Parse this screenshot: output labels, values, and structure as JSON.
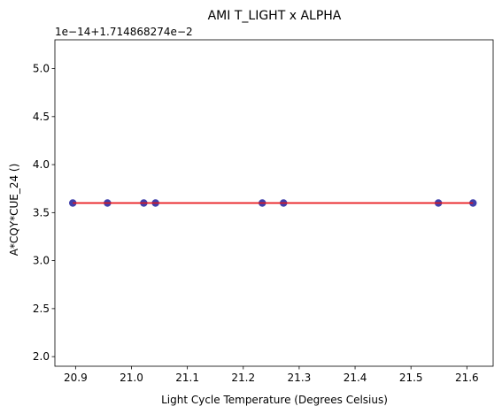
{
  "chart_data": {
    "type": "scatter",
    "title": "AMI T_LIGHT x ALPHA",
    "xlabel": "Light Cycle Temperature (Degrees Celsius)",
    "ylabel": "A*CQY*CUE_24 ()",
    "y_offset_text": "1e−14+1.714868274e−2",
    "xlim": [
      20.863,
      21.647
    ],
    "ylim": [
      1.9,
      5.3
    ],
    "x_ticks": [
      {
        "value": 20.9,
        "label": "20.9"
      },
      {
        "value": 21.0,
        "label": "21.0"
      },
      {
        "value": 21.1,
        "label": "21.1"
      },
      {
        "value": 21.2,
        "label": "21.2"
      },
      {
        "value": 21.3,
        "label": "21.3"
      },
      {
        "value": 21.4,
        "label": "21.4"
      },
      {
        "value": 21.5,
        "label": "21.5"
      },
      {
        "value": 21.6,
        "label": "21.6"
      }
    ],
    "y_ticks": [
      {
        "value": 2.0,
        "label": "2.0"
      },
      {
        "value": 2.5,
        "label": "2.5"
      },
      {
        "value": 3.0,
        "label": "3.0"
      },
      {
        "value": 3.5,
        "label": "3.5"
      },
      {
        "value": 4.0,
        "label": "4.0"
      },
      {
        "value": 4.5,
        "label": "4.5"
      },
      {
        "value": 5.0,
        "label": "5.0"
      }
    ],
    "grid": false,
    "series": [
      {
        "kind": "scatter",
        "color": "#1f1f9c",
        "x": [
          20.895,
          20.957,
          21.022,
          21.043,
          21.234,
          21.272,
          21.549,
          21.611
        ],
        "y": [
          3.6,
          3.6,
          3.6,
          3.6,
          3.6,
          3.6,
          3.6,
          3.6
        ]
      },
      {
        "kind": "line",
        "color": "#e8161b",
        "x": [
          20.895,
          21.611
        ],
        "y": [
          3.6,
          3.6
        ]
      }
    ]
  }
}
